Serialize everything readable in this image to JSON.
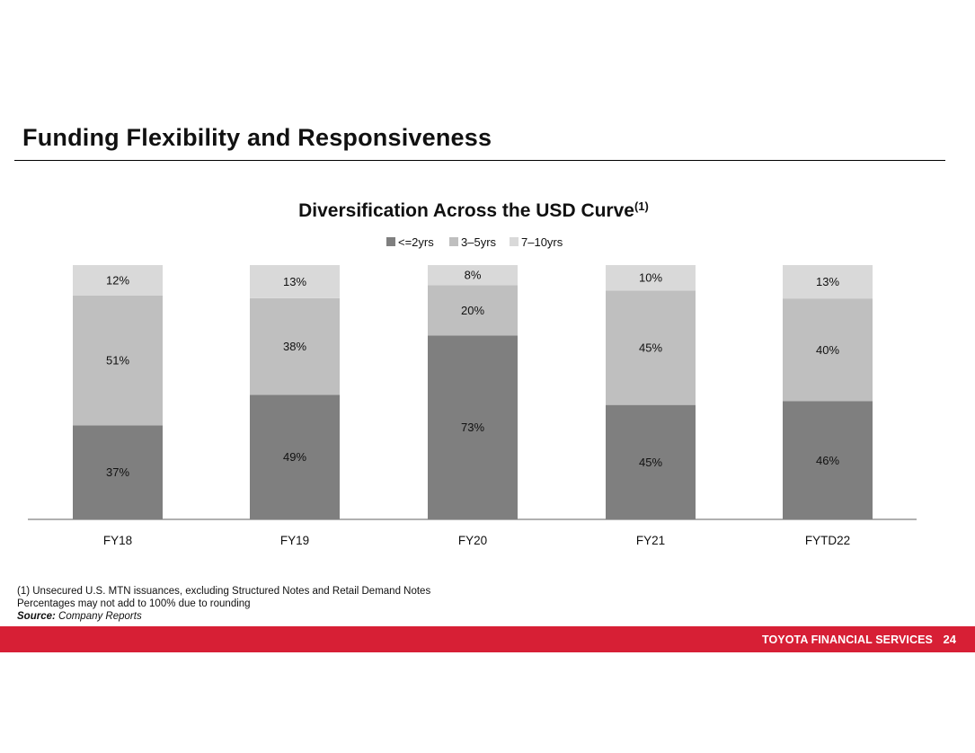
{
  "page": {
    "title": "Funding Flexibility and Responsiveness"
  },
  "chart_data": {
    "type": "bar",
    "stacked": true,
    "title": "Diversification Across the USD Curve",
    "title_superscript": "(1)",
    "categories": [
      "FY18",
      "FY19",
      "FY20",
      "FY21",
      "FYTD22"
    ],
    "series": [
      {
        "name": "<=2yrs",
        "color": "#7f7f7f",
        "values": [
          37,
          49,
          73,
          45,
          46
        ],
        "labels": [
          "37%",
          "49%",
          "73%",
          "45%",
          "46%"
        ]
      },
      {
        "name": "3-5yrs",
        "color": "#bfbfbf",
        "values": [
          51,
          38,
          20,
          45,
          40
        ],
        "labels": [
          "51%",
          "38%",
          "20%",
          "45%",
          "40%"
        ]
      },
      {
        "name": "7-10yrs",
        "color": "#d9d9d9",
        "values": [
          12,
          13,
          8,
          10,
          13
        ],
        "labels": [
          "12%",
          "13%",
          "8%",
          "10%",
          "13%"
        ]
      }
    ],
    "legend_labels": [
      "<=2yrs",
      "3–5yrs",
      "7–10yrs"
    ],
    "legend_position": "top-center",
    "xlabel": "",
    "ylabel": "",
    "ylim": [
      0,
      100
    ],
    "grid": false,
    "axis_color": "#808080"
  },
  "footnotes": {
    "note1": "(1)  Unsecured U.S. MTN issuances, excluding Structured Notes and Retail Demand Notes",
    "note2": "Percentages may not add to 100% due to rounding",
    "source_label": "Source:",
    "source_value": " Company Reports"
  },
  "footer": {
    "brand": "TOYOTA FINANCIAL SERVICES",
    "page_number": "24",
    "color": "#d71f35"
  }
}
